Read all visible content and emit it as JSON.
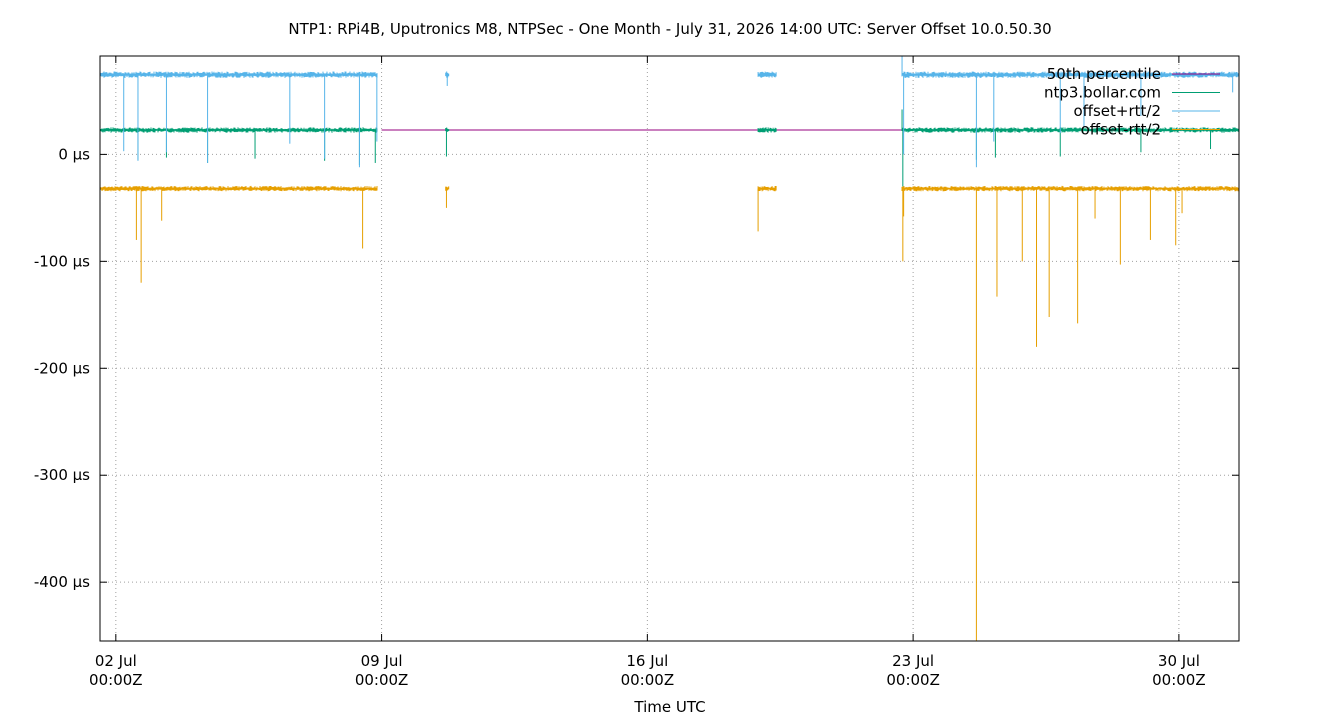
{
  "chart_data": {
    "type": "line",
    "title": "NTP1: RPi4B, Uputronics M8, NTPSec - One Month - July 31, 2026 14:00 UTC: Server Offset 10.0.50.30",
    "xlabel": "Time UTC",
    "ylabel": "",
    "x_unit": "days since 2026-07-01 00:00Z",
    "xlim": [
      "2026-07-01 14:00Z",
      "2026-07-31 14:00Z"
    ],
    "ylim": [
      -455,
      92
    ],
    "x_ticks": [
      {
        "x": "2026-07-02 00:00Z",
        "line1": "02 Jul",
        "line2": "00:00Z"
      },
      {
        "x": "2026-07-09 00:00Z",
        "line1": "09 Jul",
        "line2": "00:00Z"
      },
      {
        "x": "2026-07-16 00:00Z",
        "line1": "16 Jul",
        "line2": "00:00Z"
      },
      {
        "x": "2026-07-23 00:00Z",
        "line1": "23 Jul",
        "line2": "00:00Z"
      },
      {
        "x": "2026-07-30 00:00Z",
        "line1": "30 Jul",
        "line2": "00:00Z"
      }
    ],
    "y_ticks": [
      {
        "y": 0,
        "label": "0 µs"
      },
      {
        "y": -100,
        "label": "-100 µs"
      },
      {
        "y": -200,
        "label": "-200 µs"
      },
      {
        "y": -300,
        "label": "-300 µs"
      },
      {
        "y": -400,
        "label": "-400 µs"
      }
    ],
    "grid": true,
    "legend_position": "top-right",
    "series": [
      {
        "name": "50th percentile",
        "color": "#94007f",
        "style": "line",
        "constant": 22.8,
        "segments": [
          [
            "2026-07-09 00:00Z",
            "2026-07-22 17:00Z"
          ]
        ]
      },
      {
        "name": "ntp3.bollar.com",
        "color": "#009e73",
        "style": "line",
        "baseline": 22.8,
        "noise": 2.5,
        "segments": [
          [
            "2026-07-01 14:00Z",
            "2026-07-08 21:30Z"
          ],
          [
            "2026-07-10 16:30Z",
            "2026-07-10 19:00Z"
          ],
          [
            "2026-07-18 22:00Z",
            "2026-07-19 10:00Z"
          ],
          [
            "2026-07-22 17:00Z",
            "2026-07-31 14:00Z"
          ]
        ],
        "spikes": [
          [
            "2026-07-02 14:00Z",
            -5
          ],
          [
            "2026-07-03 08:00Z",
            -3
          ],
          [
            "2026-07-04 10:00Z",
            -8
          ],
          [
            "2026-07-05 16:00Z",
            -4
          ],
          [
            "2026-07-07 12:00Z",
            -6
          ],
          [
            "2026-07-08 10:00Z",
            -10
          ],
          [
            "2026-07-08 20:00Z",
            -8
          ],
          [
            "2026-07-10 17:00Z",
            -2
          ],
          [
            "2026-07-22 17:30Z",
            -30
          ],
          [
            "2026-07-22 17:00Z",
            42
          ],
          [
            "2026-07-24 16:00Z",
            -5
          ],
          [
            "2026-07-25 04:00Z",
            -3
          ],
          [
            "2026-07-26 21:00Z",
            -2
          ],
          [
            "2026-07-29 00:00Z",
            2
          ],
          [
            "2026-07-30 20:00Z",
            5
          ]
        ]
      },
      {
        "name": "offset+rtt/2",
        "color": "#56b4e9",
        "style": "line",
        "baseline": 74.5,
        "noise": 3,
        "segments": [
          [
            "2026-07-01 14:00Z",
            "2026-07-08 21:30Z"
          ],
          [
            "2026-07-10 16:30Z",
            "2026-07-10 19:00Z"
          ],
          [
            "2026-07-18 22:00Z",
            "2026-07-19 10:00Z"
          ],
          [
            "2026-07-22 17:00Z",
            "2026-07-31 14:00Z"
          ]
        ],
        "spikes": [
          [
            "2026-07-02 05:00Z",
            3
          ],
          [
            "2026-07-02 14:00Z",
            -6
          ],
          [
            "2026-07-03 08:00Z",
            2
          ],
          [
            "2026-07-04 10:00Z",
            -8
          ],
          [
            "2026-07-06 14:00Z",
            10
          ],
          [
            "2026-07-07 12:00Z",
            -4
          ],
          [
            "2026-07-08 10:00Z",
            -12
          ],
          [
            "2026-07-08 21:00Z",
            12
          ],
          [
            "2026-07-10 17:30Z",
            64
          ],
          [
            "2026-07-22 17:00Z",
            92
          ],
          [
            "2026-07-22 18:00Z",
            0
          ],
          [
            "2026-07-24 16:00Z",
            -12
          ],
          [
            "2026-07-25 03:00Z",
            12
          ],
          [
            "2026-07-26 21:00Z",
            20
          ],
          [
            "2026-07-27 12:00Z",
            25
          ],
          [
            "2026-07-29 00:00Z",
            36
          ],
          [
            "2026-07-31 10:00Z",
            58
          ]
        ]
      },
      {
        "name": "offset-rtt/2",
        "color": "#e69f00",
        "style": "line",
        "baseline": -32,
        "noise": 2.5,
        "segments": [
          [
            "2026-07-01 14:00Z",
            "2026-07-08 21:30Z"
          ],
          [
            "2026-07-10 16:30Z",
            "2026-07-10 19:00Z"
          ],
          [
            "2026-07-18 22:00Z",
            "2026-07-19 10:00Z"
          ],
          [
            "2026-07-22 17:00Z",
            "2026-07-31 14:00Z"
          ]
        ],
        "spikes": [
          [
            "2026-07-02 13:00Z",
            -80
          ],
          [
            "2026-07-02 16:00Z",
            -120
          ],
          [
            "2026-07-03 05:00Z",
            -62
          ],
          [
            "2026-07-08 12:00Z",
            -88
          ],
          [
            "2026-07-10 17:00Z",
            -50
          ],
          [
            "2026-07-18 22:00Z",
            -72
          ],
          [
            "2026-07-22 17:30Z",
            -100
          ],
          [
            "2026-07-22 18:00Z",
            -58
          ],
          [
            "2026-07-24 16:00Z",
            -455
          ],
          [
            "2026-07-25 05:00Z",
            -133
          ],
          [
            "2026-07-25 21:00Z",
            -100
          ],
          [
            "2026-07-26 06:00Z",
            -180
          ],
          [
            "2026-07-26 14:00Z",
            -152
          ],
          [
            "2026-07-27 08:00Z",
            -158
          ],
          [
            "2026-07-27 19:00Z",
            -60
          ],
          [
            "2026-07-28 11:00Z",
            -103
          ],
          [
            "2026-07-29 06:00Z",
            -80
          ],
          [
            "2026-07-29 22:00Z",
            -85
          ],
          [
            "2026-07-30 02:00Z",
            -55
          ]
        ]
      }
    ]
  }
}
